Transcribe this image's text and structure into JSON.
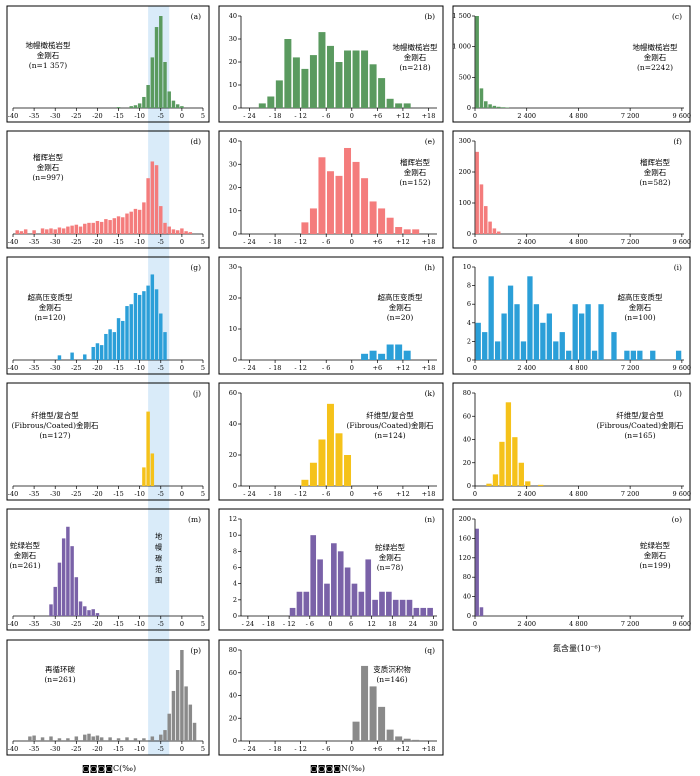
{
  "colors": {
    "mantle": "#5a9a5f",
    "eclogite": "#f47c7c",
    "uhp": "#2b9fd8",
    "fibrous": "#f5c21a",
    "ophiolite": "#7a62a8",
    "recycled": "#8a8a8a",
    "mantle_band": "#cfe6f7"
  },
  "footer": {
    "c_axis_label": "◙◙◙◙C(‰)",
    "n_axis_label": "◙◙◙◙N(‰)",
    "content_label": "氮含量(10⁻⁶)"
  },
  "band_label": "地幔碳范围",
  "chart_data": [
    {
      "id": "a",
      "type": "bar",
      "tag": "(a)",
      "label": [
        "地幔橄榄岩型",
        "金刚石",
        "(n=1 357)"
      ],
      "color": "mantle",
      "xlim": [
        -40,
        5
      ],
      "ylim": [
        0,
        1
      ],
      "xticks": [
        "-40",
        "-35",
        "-30",
        "-25",
        "-20",
        "-15",
        "-10",
        "-5",
        "0",
        "5"
      ],
      "xtick_values": [
        -40,
        -35,
        -30,
        -25,
        -20,
        -15,
        -10,
        -5,
        0,
        5
      ],
      "x": [
        -15,
        -12,
        -11,
        -10,
        -9,
        -8,
        -7,
        -6,
        -5,
        -4,
        -3,
        -2,
        -1,
        0
      ],
      "values": [
        0.01,
        0.02,
        0.03,
        0.05,
        0.12,
        0.25,
        0.55,
        0.88,
        1.0,
        0.5,
        0.18,
        0.08,
        0.04,
        0.02
      ]
    },
    {
      "id": "b",
      "type": "bar",
      "tag": "(b)",
      "label": [
        "地幔橄榄岩型",
        "金刚石",
        "(n=218)"
      ],
      "color": "mantle",
      "xlim": [
        -26,
        20
      ],
      "ylim": [
        0,
        40
      ],
      "yticks": [
        "0",
        "10",
        "20",
        "30",
        "40"
      ],
      "ytick_values": [
        0,
        10,
        20,
        30,
        40
      ],
      "xticks": [
        "- 24",
        "- 18",
        "- 12",
        "- 6",
        "0",
        "+6",
        "+12",
        "+18"
      ],
      "xtick_values": [
        -24,
        -18,
        -12,
        -6,
        0,
        6,
        12,
        18
      ],
      "x": [
        -21,
        -19,
        -17,
        -15,
        -13,
        -11,
        -9,
        -7,
        -5,
        -3,
        -1,
        1,
        3,
        5,
        7,
        9,
        11,
        13
      ],
      "values": [
        2,
        5,
        12,
        30,
        22,
        17,
        23,
        33,
        27,
        20,
        25,
        25,
        25,
        19,
        13,
        4,
        2,
        2
      ]
    },
    {
      "id": "c",
      "type": "bar",
      "tag": "(c)",
      "label": [
        "地幔橄榄岩型",
        "金刚石",
        "(n=2242)"
      ],
      "color": "mantle",
      "xlim": [
        0,
        9700
      ],
      "ylim": [
        0,
        1500
      ],
      "yticks": [
        "0",
        "500",
        "1 000",
        "1 500"
      ],
      "ytick_values": [
        0,
        500,
        1000,
        1500
      ],
      "xticks": [
        "0",
        "2 400",
        "4 800",
        "7 200",
        "9 600"
      ],
      "xtick_values": [
        0,
        2400,
        4800,
        7200,
        9600
      ],
      "x": [
        100,
        300,
        500,
        700,
        900,
        1100,
        1300,
        1500
      ],
      "values": [
        1500,
        320,
        110,
        60,
        35,
        20,
        12,
        8
      ]
    },
    {
      "id": "d",
      "type": "bar",
      "tag": "(d)",
      "label": [
        "榴辉岩型",
        "金刚石",
        "(n=997)"
      ],
      "color": "eclogite",
      "xlim": [
        -40,
        5
      ],
      "ylim": [
        0,
        1
      ],
      "xticks": [
        "-40",
        "-35",
        "-30",
        "-25",
        "-20",
        "-15",
        "-10",
        "-5",
        "0",
        "5"
      ],
      "xtick_values": [
        -40,
        -35,
        -30,
        -25,
        -20,
        -15,
        -10,
        -5,
        0,
        5
      ],
      "x": [
        -39,
        -38,
        -37,
        -35,
        -33,
        -32,
        -31,
        -30,
        -29,
        -28,
        -27,
        -26,
        -25,
        -24,
        -23,
        -22,
        -21,
        -20,
        -19,
        -18,
        -17,
        -16,
        -15,
        -14,
        -13,
        -12,
        -11,
        -10,
        -9,
        -8,
        -7,
        -6,
        -5,
        -4,
        -3,
        -2,
        -1,
        0,
        1,
        2
      ],
      "values": [
        0.04,
        0.03,
        0.05,
        0.04,
        0.06,
        0.05,
        0.06,
        0.05,
        0.07,
        0.06,
        0.08,
        0.09,
        0.1,
        0.08,
        0.11,
        0.12,
        0.12,
        0.14,
        0.13,
        0.16,
        0.15,
        0.17,
        0.19,
        0.18,
        0.22,
        0.24,
        0.27,
        0.26,
        0.34,
        0.6,
        0.78,
        0.74,
        0.3,
        0.12,
        0.08,
        0.05,
        0.04,
        0.06,
        0.03,
        0.02
      ]
    },
    {
      "id": "e",
      "type": "bar",
      "tag": "(e)",
      "label": [
        "榴辉岩型",
        "金刚石",
        "(n=152)"
      ],
      "color": "eclogite",
      "xlim": [
        -26,
        20
      ],
      "ylim": [
        0,
        40
      ],
      "yticks": [
        "0",
        "10",
        "20",
        "30",
        "40"
      ],
      "ytick_values": [
        0,
        10,
        20,
        30,
        40
      ],
      "xticks": [
        "- 24",
        "- 18",
        "- 12",
        "- 6",
        "0",
        "+6",
        "+12",
        "+18"
      ],
      "xtick_values": [
        -24,
        -18,
        -12,
        -6,
        0,
        6,
        12,
        18
      ],
      "x": [
        -11,
        -9,
        -7,
        -5,
        -3,
        -1,
        1,
        3,
        5,
        7,
        9,
        11,
        13,
        15
      ],
      "values": [
        5,
        11,
        33,
        27,
        25,
        37,
        31,
        24,
        14,
        11,
        7,
        3,
        2,
        2
      ]
    },
    {
      "id": "f",
      "type": "bar",
      "tag": "(f)",
      "label": [
        "榴辉岩型",
        "金刚石",
        "(n=582)"
      ],
      "color": "eclogite",
      "xlim": [
        0,
        9700
      ],
      "ylim": [
        0,
        300
      ],
      "yticks": [
        "0",
        "100",
        "200",
        "300"
      ],
      "ytick_values": [
        0,
        100,
        200,
        300
      ],
      "xticks": [
        "0",
        "2 400",
        "4 800",
        "7 200",
        "9 600"
      ],
      "xtick_values": [
        0,
        2400,
        4800,
        7200,
        9600
      ],
      "x": [
        100,
        300,
        500,
        700,
        900,
        1100
      ],
      "values": [
        265,
        160,
        90,
        40,
        18,
        8
      ]
    },
    {
      "id": "g",
      "type": "bar",
      "tag": "(g)",
      "label": [
        "超高压变质型",
        "金刚石",
        "(n=120)"
      ],
      "color": "uhp",
      "xlim": [
        -40,
        5
      ],
      "ylim": [
        0,
        1
      ],
      "xticks": [
        "-40",
        "-35",
        "-30",
        "-25",
        "-20",
        "-15",
        "-10",
        "-5",
        "0",
        "5"
      ],
      "xtick_values": [
        -40,
        -35,
        -30,
        -25,
        -20,
        -15,
        -10,
        -5,
        0,
        5
      ],
      "x": [
        -29,
        -26,
        -23,
        -21,
        -20,
        -19,
        -18,
        -17,
        -16,
        -15,
        -14,
        -13,
        -12,
        -11,
        -10,
        -9,
        -8,
        -7,
        -6,
        -5,
        -4
      ],
      "values": [
        0.05,
        0.08,
        0.06,
        0.14,
        0.18,
        0.16,
        0.28,
        0.33,
        0.3,
        0.45,
        0.42,
        0.58,
        0.6,
        0.72,
        0.7,
        0.74,
        0.8,
        0.92,
        0.76,
        0.5,
        0.3
      ]
    },
    {
      "id": "h",
      "type": "bar",
      "tag": "(h)",
      "label": [
        "超高压变质型",
        "金刚石",
        "(n=20)"
      ],
      "color": "uhp",
      "xlim": [
        -26,
        20
      ],
      "ylim": [
        0,
        30
      ],
      "yticks": [
        "0",
        "10",
        "20",
        "30"
      ],
      "ytick_values": [
        0,
        10,
        20,
        30
      ],
      "xticks": [
        "- 24",
        "- 18",
        "- 12",
        "- 6",
        "0",
        "+6",
        "+12",
        "+18"
      ],
      "xtick_values": [
        -24,
        -18,
        -12,
        -6,
        0,
        6,
        12,
        18
      ],
      "x": [
        3,
        5,
        7,
        9,
        11,
        13
      ],
      "values": [
        2,
        3,
        2,
        5,
        5,
        3
      ]
    },
    {
      "id": "i",
      "type": "bar",
      "tag": "(i)",
      "label": [
        "超高压变质型",
        "金刚石",
        "(n=100)"
      ],
      "color": "uhp",
      "xlim": [
        0,
        9700
      ],
      "ylim": [
        0,
        10
      ],
      "yticks": [
        "0",
        "2",
        "4",
        "6",
        "8",
        "10"
      ],
      "ytick_values": [
        0,
        2,
        4,
        6,
        8,
        10
      ],
      "xticks": [
        "0",
        "2 400",
        "4 800",
        "7 200",
        "9 600"
      ],
      "xtick_values": [
        0,
        2400,
        4800,
        7200,
        9600
      ],
      "x": [
        150,
        450,
        750,
        1050,
        1350,
        1650,
        1950,
        2250,
        2550,
        2850,
        3150,
        3450,
        3750,
        4050,
        4350,
        4650,
        4950,
        5250,
        5550,
        5850,
        6450,
        7050,
        7350,
        7650,
        8250,
        9450
      ],
      "values": [
        4,
        3,
        9,
        2,
        5,
        8,
        6,
        2,
        9,
        6,
        4,
        5,
        2,
        3,
        1,
        6,
        5,
        6,
        1,
        6,
        3,
        1,
        1,
        1,
        1,
        1
      ]
    },
    {
      "id": "j",
      "type": "bar",
      "tag": "(j)",
      "label": [
        "纤维型/复合型",
        "(Fibrous/Coated)金刚石",
        "(n=127)"
      ],
      "color": "fibrous",
      "xlim": [
        -40,
        5
      ],
      "ylim": [
        0,
        1
      ],
      "xticks": [
        "-40",
        "-35",
        "-30",
        "-25",
        "-20",
        "-15",
        "-10",
        "-5",
        "0",
        "5"
      ],
      "xtick_values": [
        -40,
        -35,
        -30,
        -25,
        -20,
        -15,
        -10,
        -5,
        0,
        5
      ],
      "x": [
        -9,
        -8,
        -7
      ],
      "values": [
        0.2,
        0.8,
        0.35
      ]
    },
    {
      "id": "k",
      "type": "bar",
      "tag": "(k)",
      "label": [
        "纤维型/复合型",
        "(Fibrous/Coated)金刚石",
        "(n=124)"
      ],
      "color": "fibrous",
      "xlim": [
        -26,
        20
      ],
      "ylim": [
        0,
        60
      ],
      "yticks": [
        "0",
        "20",
        "40",
        "60"
      ],
      "ytick_values": [
        0,
        20,
        40,
        60
      ],
      "xticks": [
        "- 24",
        "- 18",
        "- 12",
        "- 6",
        "0",
        "+6",
        "+12",
        "+18"
      ],
      "xtick_values": [
        -24,
        -18,
        -12,
        -6,
        0,
        6,
        12,
        18
      ],
      "x": [
        -11,
        -9,
        -7,
        -5,
        -3,
        -1
      ],
      "values": [
        4,
        15,
        30,
        53,
        34,
        20
      ]
    },
    {
      "id": "l",
      "type": "bar",
      "tag": "(l)",
      "label": [
        "纤维型/复合型",
        "(Fibrous/Coated)金刚石",
        "(n=165)"
      ],
      "color": "fibrous",
      "xlim": [
        0,
        9700
      ],
      "ylim": [
        0,
        80
      ],
      "yticks": [
        "0",
        "20",
        "40",
        "60",
        "80"
      ],
      "ytick_values": [
        0,
        20,
        40,
        60,
        80
      ],
      "xticks": [
        "0",
        "2 400",
        "4 800",
        "7 200",
        "9 600"
      ],
      "xtick_values": [
        0,
        2400,
        4800,
        7200,
        9600
      ],
      "x": [
        650,
        950,
        1250,
        1550,
        1850,
        2150,
        2450,
        3050
      ],
      "values": [
        2,
        10,
        38,
        72,
        42,
        20,
        4,
        1
      ]
    },
    {
      "id": "m",
      "type": "bar",
      "tag": "(m)",
      "label": [
        "蛇绿岩型",
        "金刚石",
        "(n=261)"
      ],
      "color": "ophiolite",
      "xlim": [
        -40,
        5
      ],
      "ylim": [
        0,
        1
      ],
      "xticks": [
        "-40",
        "-35",
        "-30",
        "-25",
        "-20",
        "-15",
        "-10",
        "-5",
        "0",
        "5"
      ],
      "xtick_values": [
        -40,
        -35,
        -30,
        -25,
        -20,
        -15,
        -10,
        -5,
        0,
        5
      ],
      "x": [
        -31,
        -30,
        -29,
        -28,
        -27,
        -26,
        -25,
        -24,
        -23,
        -22,
        -21,
        -20
      ],
      "values": [
        0.12,
        0.3,
        0.55,
        0.8,
        0.92,
        0.72,
        0.4,
        0.15,
        0.1,
        0.06,
        0.07,
        0.03
      ]
    },
    {
      "id": "n",
      "type": "bar",
      "tag": "(n)",
      "label": [
        "蛇绿岩型",
        "金刚石",
        "(n=78)"
      ],
      "color": "ophiolite",
      "xlim": [
        -26,
        31
      ],
      "ylim": [
        0,
        12
      ],
      "yticks": [
        "0",
        "2",
        "4",
        "6",
        "8",
        "10",
        "12"
      ],
      "ytick_values": [
        0,
        2,
        4,
        6,
        8,
        10,
        12
      ],
      "xticks": [
        "- 24",
        "- 18",
        "- 12",
        "- 6",
        "0",
        "6",
        "12",
        "18",
        "24",
        "30"
      ],
      "xtick_values": [
        -24,
        -18,
        -12,
        -6,
        0,
        6,
        12,
        18,
        24,
        30
      ],
      "x": [
        -11,
        -9,
        -7,
        -5,
        -3,
        -1,
        1,
        3,
        5,
        7,
        9,
        11,
        13,
        15,
        17,
        19,
        21,
        23,
        25,
        27,
        29
      ],
      "values": [
        1,
        3,
        3,
        10,
        7,
        4,
        9,
        8,
        6,
        4,
        3,
        7,
        2,
        3,
        3,
        2,
        2,
        2,
        1,
        1,
        1
      ]
    },
    {
      "id": "o",
      "type": "bar",
      "tag": "(o)",
      "label": [
        "蛇绿岩型",
        "金刚石",
        "(n=199)"
      ],
      "color": "ophiolite",
      "xlim": [
        0,
        9700
      ],
      "ylim": [
        0,
        200
      ],
      "yticks": [
        "0",
        "40",
        "80",
        "120",
        "160",
        "200"
      ],
      "ytick_values": [
        0,
        40,
        80,
        120,
        160,
        200
      ],
      "xticks": [
        "0",
        "2 400",
        "4 800",
        "7 200",
        "9 600"
      ],
      "xtick_values": [
        0,
        2400,
        4800,
        7200,
        9600
      ],
      "x": [
        100,
        300
      ],
      "values": [
        180,
        18
      ]
    },
    {
      "id": "p",
      "type": "bar",
      "tag": "(p)",
      "label": [
        "再循环碳",
        "(n=261)"
      ],
      "color": "recycled",
      "xlim": [
        -40,
        5
      ],
      "ylim": [
        0,
        1
      ],
      "xticks": [
        "-40",
        "-35",
        "-30",
        "-25",
        "-20",
        "-15",
        "-10",
        "-5",
        "0",
        "5"
      ],
      "xtick_values": [
        -40,
        -35,
        -30,
        -25,
        -20,
        -15,
        -10,
        -5,
        0,
        5
      ],
      "x": [
        -36,
        -35,
        -33,
        -31,
        -29,
        -27,
        -25,
        -23,
        -22,
        -21,
        -20,
        -19,
        -17,
        -15,
        -13,
        -11,
        -9,
        -7,
        -5,
        -4,
        -3,
        -2,
        -1,
        0,
        1,
        2,
        3
      ],
      "values": [
        0.05,
        0.06,
        0.04,
        0.05,
        0.03,
        0.03,
        0.05,
        0.07,
        0.08,
        0.05,
        0.06,
        0.04,
        0.04,
        0.03,
        0.04,
        0.03,
        0.03,
        0.05,
        0.07,
        0.12,
        0.3,
        0.55,
        0.78,
        1.0,
        0.6,
        0.4,
        0.2
      ]
    },
    {
      "id": "q",
      "type": "bar",
      "tag": "(q)",
      "label": [
        "变质沉积物",
        "(n=146)"
      ],
      "color": "recycled",
      "xlim": [
        -26,
        20
      ],
      "ylim": [
        0,
        80
      ],
      "yticks": [
        "0",
        "20",
        "40",
        "60",
        "80"
      ],
      "ytick_values": [
        0,
        20,
        40,
        60,
        80
      ],
      "xticks": [
        "- 24",
        "- 18",
        "- 12",
        "- 6",
        "0",
        "+6",
        "+12",
        "+18"
      ],
      "xtick_values": [
        -24,
        -18,
        -12,
        -6,
        0,
        6,
        12,
        18
      ],
      "x": [
        1,
        3,
        5,
        7,
        9,
        11,
        13,
        15
      ],
      "values": [
        17,
        66,
        48,
        30,
        10,
        4,
        2,
        1
      ]
    }
  ]
}
